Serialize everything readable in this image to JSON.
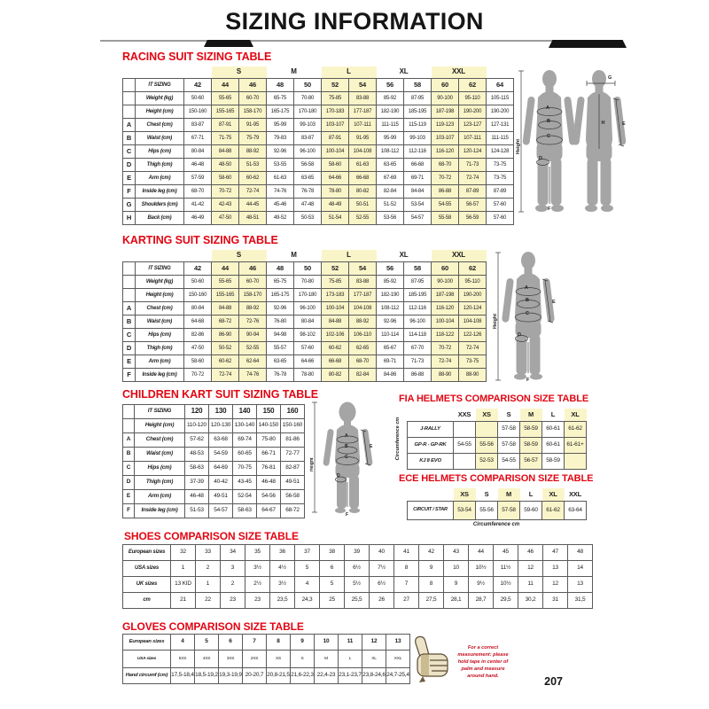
{
  "header": {
    "title": "SIZING INFORMATION"
  },
  "footer": {
    "page_number": "207"
  },
  "tables": {
    "racing": {
      "title": "RACING SUIT SIZING TABLE",
      "header_label": "IT SIZING",
      "letter_col": true,
      "groups": [
        {
          "label": "",
          "span": 3,
          "hl": false
        },
        {
          "label": "S",
          "span": 2,
          "hl": true
        },
        {
          "label": "M",
          "span": 2,
          "hl": false
        },
        {
          "label": "L",
          "span": 2,
          "hl": true
        },
        {
          "label": "XL",
          "span": 2,
          "hl": false
        },
        {
          "label": "XXL",
          "span": 2,
          "hl": true
        },
        {
          "label": "",
          "span": 1,
          "hl": false
        }
      ],
      "sizes": [
        "42",
        "44",
        "46",
        "48",
        "50",
        "52",
        "54",
        "56",
        "58",
        "60",
        "62",
        "64"
      ],
      "highlight_cols": [
        1,
        2,
        5,
        6,
        9,
        10
      ],
      "rows": [
        {
          "letter": "",
          "label": "Weight (kg)",
          "values": [
            "50-60",
            "55-65",
            "60-70",
            "65-75",
            "70-80",
            "75-85",
            "83-88",
            "85-92",
            "87-95",
            "90-100",
            "95-110",
            "105-115"
          ]
        },
        {
          "letter": "",
          "label": "Height (cm)",
          "values": [
            "150-160",
            "155-165",
            "158-170",
            "165-175",
            "170-180",
            "170-183",
            "177-187",
            "182-190",
            "185-195",
            "187-198",
            "190-200",
            "190-200"
          ]
        },
        {
          "letter": "A",
          "label": "Chest (cm)",
          "values": [
            "83-87",
            "87-91",
            "91-95",
            "95-99",
            "99-103",
            "103-107",
            "107-111",
            "111-115",
            "115-119",
            "119-123",
            "123-127",
            "127-131"
          ]
        },
        {
          "letter": "B",
          "label": "Waist (cm)",
          "values": [
            "67-71",
            "71-75",
            "75-79",
            "79-83",
            "83-87",
            "87-91",
            "91-95",
            "95-99",
            "99-103",
            "103-107",
            "107-111",
            "111-115"
          ]
        },
        {
          "letter": "C",
          "label": "Hips (cm)",
          "values": [
            "80-84",
            "84-88",
            "88-92",
            "92-96",
            "96-100",
            "100-104",
            "104-108",
            "108-112",
            "112-116",
            "116-120",
            "120-124",
            "124-128"
          ]
        },
        {
          "letter": "D",
          "label": "Thigh (cm)",
          "values": [
            "46-48",
            "48-50",
            "51-53",
            "53-55",
            "56-58",
            "58-60",
            "61-63",
            "63-65",
            "66-68",
            "68-70",
            "71-73",
            "73-75"
          ]
        },
        {
          "letter": "E",
          "label": "Arm (cm)",
          "values": [
            "57-59",
            "58-60",
            "60-62",
            "61-63",
            "63-65",
            "64-66",
            "66-68",
            "67-69",
            "69-71",
            "70-72",
            "72-74",
            "73-75"
          ]
        },
        {
          "letter": "F",
          "label": "Inside leg (cm)",
          "values": [
            "68-70",
            "70-72",
            "72-74",
            "74-76",
            "76-78",
            "78-80",
            "80-82",
            "82-84",
            "84-84",
            "86-88",
            "87-89",
            "87-89"
          ]
        },
        {
          "letter": "G",
          "label": "Shoulders (cm)",
          "values": [
            "41-42",
            "42-43",
            "44-45",
            "45-46",
            "47-48",
            "48-49",
            "50-51",
            "51-52",
            "53-54",
            "54-55",
            "56-57",
            "57-60"
          ]
        },
        {
          "letter": "H",
          "label": "Back (cm)",
          "values": [
            "46-49",
            "47-50",
            "48-51",
            "49-52",
            "50-53",
            "51-54",
            "52-55",
            "53-56",
            "54-57",
            "55-58",
            "56-59",
            "57-60"
          ]
        }
      ]
    },
    "karting": {
      "title": "KARTING SUIT SIZING TABLE",
      "header_label": "IT SIZING",
      "letter_col": true,
      "groups": [
        {
          "label": "",
          "span": 3,
          "hl": false
        },
        {
          "label": "S",
          "span": 2,
          "hl": true
        },
        {
          "label": "M",
          "span": 2,
          "hl": false
        },
        {
          "label": "L",
          "span": 2,
          "hl": true
        },
        {
          "label": "XL",
          "span": 2,
          "hl": false
        },
        {
          "label": "XXL",
          "span": 2,
          "hl": true
        }
      ],
      "sizes": [
        "42",
        "44",
        "46",
        "48",
        "50",
        "52",
        "54",
        "56",
        "58",
        "60",
        "62"
      ],
      "highlight_cols": [
        1,
        2,
        5,
        6,
        9,
        10
      ],
      "rows": [
        {
          "letter": "",
          "label": "Weight (kg)",
          "values": [
            "50-60",
            "55-65",
            "60-70",
            "65-75",
            "70-80",
            "75-85",
            "83-88",
            "85-92",
            "87-95",
            "90-100",
            "95-110"
          ]
        },
        {
          "letter": "",
          "label": "Height (cm)",
          "values": [
            "150-160",
            "155-165",
            "158-170",
            "165-175",
            "170-180",
            "173-183",
            "177-187",
            "182-190",
            "185-195",
            "187-198",
            "190-200"
          ]
        },
        {
          "letter": "A",
          "label": "Chest (cm)",
          "values": [
            "80-84",
            "84-88",
            "88-92",
            "92-96",
            "96-100",
            "100-104",
            "104-108",
            "108-112",
            "112-116",
            "116-120",
            "120-124"
          ]
        },
        {
          "letter": "B",
          "label": "Waist (cm)",
          "values": [
            "64-68",
            "68-72",
            "72-76",
            "76-80",
            "80-84",
            "84-88",
            "88-92",
            "92-96",
            "96-100",
            "100-104",
            "104-108"
          ]
        },
        {
          "letter": "C",
          "label": "Hips (cm)",
          "values": [
            "82-86",
            "86-90",
            "90-94",
            "94-98",
            "98-102",
            "102-106",
            "106-110",
            "110-114",
            "114-118",
            "118-122",
            "122-126"
          ]
        },
        {
          "letter": "D",
          "label": "Thigh (cm)",
          "values": [
            "47-50",
            "50-52",
            "52-55",
            "55-57",
            "57-60",
            "60-62",
            "62-65",
            "65-67",
            "67-70",
            "70-72",
            "72-74"
          ]
        },
        {
          "letter": "E",
          "label": "Arm (cm)",
          "values": [
            "58-60",
            "60-62",
            "62-64",
            "63-65",
            "64-66",
            "66-68",
            "68-70",
            "69-71",
            "71-73",
            "72-74",
            "73-75"
          ]
        },
        {
          "letter": "F",
          "label": "Inside leg (cm)",
          "values": [
            "70-72",
            "72-74",
            "74-76",
            "76-78",
            "78-80",
            "80-82",
            "82-84",
            "84-86",
            "86-88",
            "88-90",
            "88-90"
          ]
        }
      ]
    },
    "children": {
      "title": "CHILDREN KART SUIT SIZING TABLE",
      "header_label": "IT SIZING",
      "letter_col": true,
      "sizes": [
        "120",
        "130",
        "140",
        "150",
        "160"
      ],
      "highlight_cols": [],
      "rows": [
        {
          "letter": "",
          "label": "Height (cm)",
          "values": [
            "110-120",
            "120-130",
            "130-140",
            "140-150",
            "150-160"
          ]
        },
        {
          "letter": "A",
          "label": "Chest (cm)",
          "values": [
            "57-62",
            "63-68",
            "69-74",
            "75-80",
            "81-86"
          ]
        },
        {
          "letter": "B",
          "label": "Waist (cm)",
          "values": [
            "48-53",
            "54-59",
            "60-65",
            "66-71",
            "72-77"
          ]
        },
        {
          "letter": "C",
          "label": "Hips (cm)",
          "values": [
            "58-63",
            "64-69",
            "70-75",
            "76-81",
            "82-87"
          ]
        },
        {
          "letter": "D",
          "label": "Thigh (cm)",
          "values": [
            "37-39",
            "40-42",
            "43-45",
            "46-48",
            "49-51"
          ]
        },
        {
          "letter": "E",
          "label": "Arm (cm)",
          "values": [
            "46-48",
            "49-51",
            "52-54",
            "54-56",
            "56-58"
          ]
        },
        {
          "letter": "F",
          "label": "Inside leg (cm)",
          "values": [
            "51-53",
            "54-57",
            "58-63",
            "64-67",
            "68-72"
          ]
        }
      ]
    },
    "fia": {
      "title": "FIA HELMETS COMPARISON SIZE TABLE",
      "side_label": "Circumference cm",
      "header_label": "",
      "letter_col": false,
      "borderless_header": true,
      "sizes": [
        "XXS",
        "XS",
        "S",
        "M",
        "L",
        "XL"
      ],
      "highlight_cols": [
        1,
        3,
        5
      ],
      "rows": [
        {
          "label": "J-RALLY",
          "values": [
            "",
            "",
            "57-58",
            "58-59",
            "60-61",
            "61-62"
          ]
        },
        {
          "label": "GP-R - GP-RK",
          "values": [
            "54-55",
            "55-56",
            "57-58",
            "58-59",
            "60-61",
            "61-61+"
          ]
        },
        {
          "label": "KJ 8 EVO",
          "values": [
            "",
            "52-53",
            "54-55",
            "56-57",
            "58-59",
            ""
          ]
        }
      ]
    },
    "ece": {
      "title": "ECE HELMETS COMPARISON SIZE TABLE",
      "caption": "Circumference cm",
      "header_label": "",
      "letter_col": false,
      "borderless_header": true,
      "sizes": [
        "XS",
        "S",
        "M",
        "L",
        "XL",
        "XXL"
      ],
      "highlight_cols": [
        0,
        2,
        4
      ],
      "rows": [
        {
          "label": "CIRCUIT / STAR",
          "values": [
            "53-54",
            "55-56",
            "57-58",
            "59-60",
            "61-62",
            "63-64"
          ]
        }
      ]
    },
    "shoes": {
      "title": "SHOES COMPARISON SIZE TABLE",
      "letter_col": false,
      "rows": [
        {
          "label": "European sizes",
          "values": [
            "32",
            "33",
            "34",
            "35",
            "36",
            "37",
            "38",
            "39",
            "40",
            "41",
            "42",
            "43",
            "44",
            "45",
            "46",
            "47",
            "48"
          ]
        },
        {
          "label": "USA sizes",
          "values": [
            "1",
            "2",
            "3",
            "3½",
            "4½",
            "5",
            "6",
            "6½",
            "7½",
            "8",
            "9",
            "10",
            "10½",
            "11½",
            "12",
            "13",
            "14"
          ]
        },
        {
          "label": "UK sizes",
          "values": [
            "13 KID",
            "1",
            "2",
            "2½",
            "3½",
            "4",
            "5",
            "5½",
            "6½",
            "7",
            "8",
            "9",
            "9½",
            "10½",
            "11",
            "12",
            "13"
          ]
        },
        {
          "label": "cm",
          "values": [
            "21",
            "22",
            "23",
            "23",
            "23,5",
            "24,3",
            "25",
            "25,5",
            "26",
            "27",
            "27,5",
            "28,1",
            "28,7",
            "29,5",
            "30,2",
            "31",
            "31,5"
          ]
        }
      ]
    },
    "gloves": {
      "title": "GLOVES COMPARISON SIZE TABLE",
      "letter_col": false,
      "rows": [
        {
          "label": "European sizes",
          "values": [
            "4",
            "5",
            "6",
            "7",
            "8",
            "9",
            "10",
            "11",
            "12",
            "13"
          ]
        },
        {
          "label": "USA sizes",
          "values": [
            "5XS",
            "4XS",
            "3XS",
            "2XS",
            "XS",
            "S",
            "M",
            "L",
            "XL",
            "XXL"
          ]
        },
        {
          "label": "Hand circumf (cm)",
          "values": [
            "17,5-18,4",
            "18,5-19,2",
            "19,3-19,9",
            "20-20,7",
            "20,8-21,5",
            "21,6-22,3",
            "22,4-23",
            "23,1-23,7",
            "23,8-24,6",
            "24,7-25,4"
          ]
        }
      ]
    }
  },
  "figures": {
    "racing": {
      "height_label": "Height",
      "labels": {
        "a": "A",
        "b": "B",
        "c": "C",
        "d": "D",
        "e": "E",
        "f": "F",
        "g": "G",
        "h": "H"
      }
    },
    "karting": {
      "height_label": "Height",
      "labels": {
        "a": "A",
        "b": "B",
        "c": "C",
        "d": "D",
        "e": "E",
        "f": "F"
      }
    },
    "children": {
      "height_label": "Height",
      "labels": {
        "a": "A",
        "b": "B",
        "c": "C",
        "d": "D",
        "e": "E",
        "f": "F"
      }
    }
  },
  "gloves_note": {
    "text": "For a correct measurement: please hold tape in center of palm and measure around hand."
  }
}
